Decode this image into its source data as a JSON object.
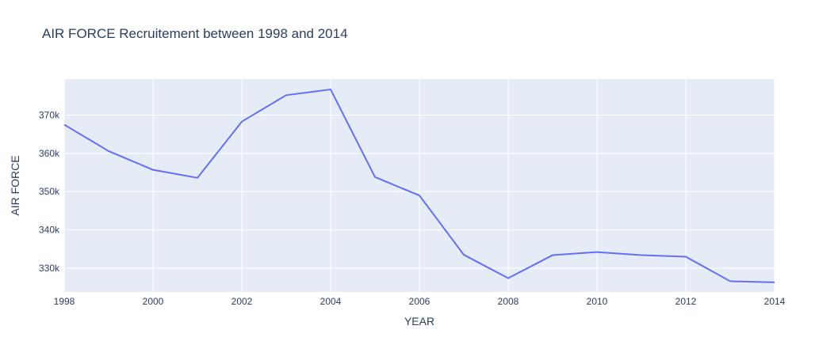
{
  "chart_data": {
    "type": "line",
    "title": "AIR FORCE Recruitement between 1998 and 2014",
    "xlabel": "YEAR",
    "ylabel": "AIR FORCE",
    "xlim": [
      1998,
      2014
    ],
    "ylim": [
      323800,
      379400
    ],
    "x_ticks": [
      1998,
      2000,
      2002,
      2004,
      2006,
      2008,
      2010,
      2012,
      2014
    ],
    "x_tick_labels": [
      "1998",
      "2000",
      "2002",
      "2004",
      "2006",
      "2008",
      "2010",
      "2012",
      "2014"
    ],
    "y_ticks": [
      330000,
      340000,
      350000,
      360000,
      370000
    ],
    "y_tick_labels": [
      "330k",
      "340k",
      "350k",
      "360k",
      "370k"
    ],
    "grid": true,
    "line_color": "#636efa",
    "plot_background": "#e5ecf6",
    "series": [
      {
        "x": [
          1998,
          1999,
          2000,
          2001,
          2002,
          2003,
          2004,
          2005,
          2006,
          2007,
          2008,
          2009,
          2010,
          2011,
          2012,
          2013,
          2014
        ],
        "values": [
          367500,
          360600,
          355700,
          353600,
          368300,
          375200,
          376700,
          353800,
          349000,
          333500,
          327400,
          333400,
          334200,
          333400,
          333000,
          326600,
          326300
        ]
      }
    ]
  }
}
